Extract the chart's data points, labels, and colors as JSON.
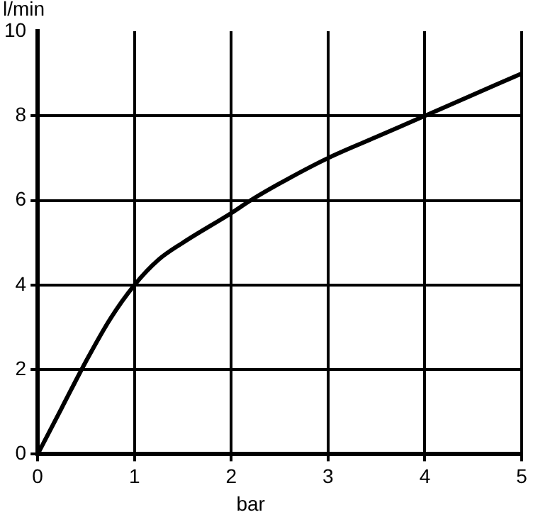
{
  "chart_data": {
    "type": "line",
    "xlabel": "bar",
    "ylabel": "l/min",
    "x": [
      0,
      0.25,
      0.5,
      0.75,
      1,
      1.25,
      1.5,
      2,
      2.2,
      2.5,
      3,
      3.5,
      4,
      4.5,
      5
    ],
    "series": [
      {
        "color": "#000000",
        "values": [
          0,
          1.1,
          2.2,
          3.2,
          4,
          4.6,
          5,
          5.7,
          6,
          6.4,
          7,
          7.5,
          8,
          8.5,
          9
        ]
      }
    ],
    "xlim": [
      0,
      5
    ],
    "xticks": [
      0,
      1,
      2,
      3,
      4,
      5
    ],
    "ylim": [
      0,
      10
    ],
    "yticks": [
      0,
      2,
      4,
      6,
      8,
      10
    ],
    "grid": true,
    "legend": false,
    "marker": "none",
    "line_style": "solid"
  }
}
